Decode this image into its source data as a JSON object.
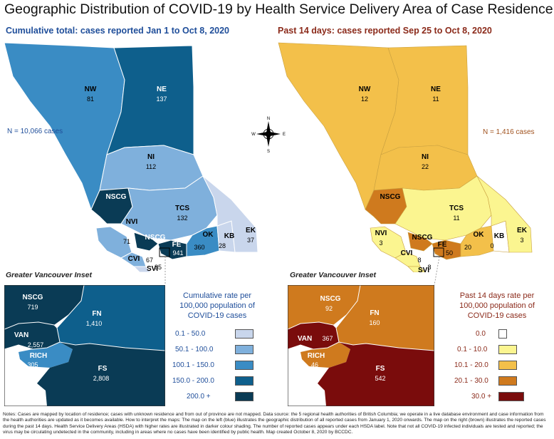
{
  "title": "Geographic Distribution of COVID-19 by Health Service Delivery Area of Case Residence",
  "left_map": {
    "subtitle": "Cumulative total: cases reported Jan 1 to Oct 8, 2020",
    "total": "N = 10,066 cases",
    "regions": [
      {
        "code": "NW",
        "value": "81"
      },
      {
        "code": "NE",
        "value": "137"
      },
      {
        "code": "NI",
        "value": "112"
      },
      {
        "code": "NSCG",
        "value": ""
      },
      {
        "code": "TCS",
        "value": "132"
      },
      {
        "code": "NVI",
        "value": "71"
      },
      {
        "code": "NSCG",
        "value": ""
      },
      {
        "code": "FE",
        "value": "941"
      },
      {
        "code": "OK",
        "value": "360"
      },
      {
        "code": "KB",
        "value": "28"
      },
      {
        "code": "EK",
        "value": "37"
      },
      {
        "code": "CVI",
        "value": "67"
      },
      {
        "code": "SVI",
        "value": "85"
      }
    ],
    "inset": {
      "title": "Greater Vancouver Inset",
      "regions": [
        {
          "code": "NSCG",
          "value": "719"
        },
        {
          "code": "FN",
          "value": "1,410"
        },
        {
          "code": "VAN",
          "value": "2,557"
        },
        {
          "code": "RICH",
          "value": "305"
        },
        {
          "code": "FS",
          "value": "2,808"
        }
      ]
    },
    "legend": {
      "title": "Cumulative rate per 100,000 population of COVID-19 cases",
      "items": [
        {
          "label": "0.1 - 50.0",
          "color": "#c9d6ec"
        },
        {
          "label": "50.1 - 100.0",
          "color": "#7fb0dc"
        },
        {
          "label": "100.1 - 150.0",
          "color": "#3a8cc4"
        },
        {
          "label": "150.0 - 200.0",
          "color": "#0e5f8c"
        },
        {
          "label": "200.0 +",
          "color": "#0a3b55"
        }
      ]
    }
  },
  "right_map": {
    "subtitle": "Past 14 days: cases reported Sep 25 to Oct 8, 2020",
    "total": "N = 1,416 cases",
    "regions": [
      {
        "code": "NW",
        "value": "12"
      },
      {
        "code": "NE",
        "value": "11"
      },
      {
        "code": "NI",
        "value": "22"
      },
      {
        "code": "NSCG",
        "value": ""
      },
      {
        "code": "TCS",
        "value": "11"
      },
      {
        "code": "NVI",
        "value": "3"
      },
      {
        "code": "NSCG",
        "value": ""
      },
      {
        "code": "FE",
        "value": "50"
      },
      {
        "code": "OK",
        "value": "20"
      },
      {
        "code": "KB",
        "value": "0"
      },
      {
        "code": "EK",
        "value": "3"
      },
      {
        "code": "CVI",
        "value": "8"
      },
      {
        "code": "SVI",
        "value": "8"
      }
    ],
    "inset": {
      "title": "Greater Vancouver Inset",
      "regions": [
        {
          "code": "NSCG",
          "value": "92"
        },
        {
          "code": "FN",
          "value": "160"
        },
        {
          "code": "VAN",
          "value": "367"
        },
        {
          "code": "RICH",
          "value": "46"
        },
        {
          "code": "FS",
          "value": "542"
        }
      ]
    },
    "legend": {
      "title": "Past 14 days rate per 100,000 population of COVID-19 cases",
      "items": [
        {
          "label": "0.0",
          "color": "#ffffff"
        },
        {
          "label": "0.1 - 10.0",
          "color": "#fbf590"
        },
        {
          "label": "10.1 - 20.0",
          "color": "#f3c04a"
        },
        {
          "label": "20.1 - 30.0",
          "color": "#cf7a1e"
        },
        {
          "label": "30.0 +",
          "color": "#7a0c0c"
        }
      ]
    }
  },
  "compass": {
    "n": "N",
    "s": "S",
    "e": "E",
    "w": "W"
  },
  "notes": "Notes: Cases are mapped by location of residence; cases with unknown residence and from out of province are not mapped. Data source: the 5 regional health authorities of British Columbia; we operate in a live database environment and case information from the health authorities are updated as it becomes available. How to interpret the maps: The map on the left (blue) illustrates the geographic distribution of all reported cases from January 1, 2020 onwards. The map on the right (brown) illustrates the reported cases during the past 14 days. Health Service Delivery Areas (HSDA) with higher rates are illustrated in darker colour shading. The number of reported cases appears under each HSDA label. Note that not all COVID-19 infected individuals are tested and reported; the virus may be circulating undetected in the community, including in areas where no cases have been identified by public health. Map created October 8, 2020 by BCCDC."
}
